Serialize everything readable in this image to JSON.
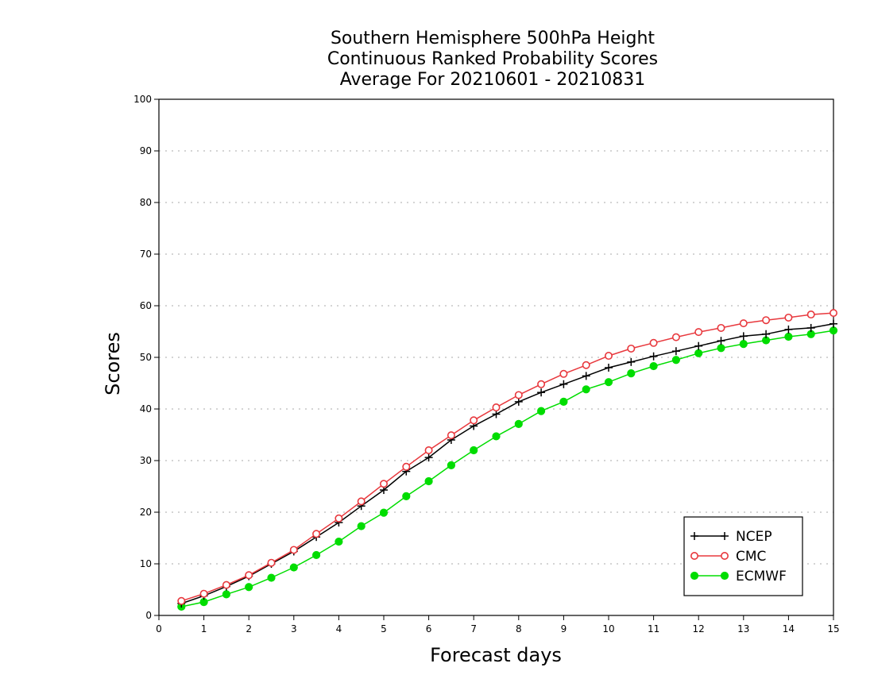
{
  "title_lines": [
    "Southern Hemisphere 500hPa Height",
    "Continuous Ranked Probability Scores",
    "Average For 20210601 - 20210831"
  ],
  "chart_data": {
    "type": "line",
    "title": "Southern Hemisphere 500hPa Height Continuous Ranked Probability Scores Average For 20210601 - 20210831",
    "xlabel": "Forecast days",
    "ylabel": "Scores",
    "xlim": [
      0,
      15
    ],
    "ylim": [
      0,
      100
    ],
    "x_ticks": [
      "0",
      "1",
      "2",
      "3",
      "4",
      "5",
      "6",
      "7",
      "8",
      "9",
      "10",
      "11",
      "12",
      "13",
      "14",
      "15"
    ],
    "y_ticks": [
      "0",
      "10",
      "20",
      "30",
      "40",
      "50",
      "60",
      "70",
      "80",
      "90",
      "100"
    ],
    "grid": "horizontal dotted",
    "legend_position": "bottom-right",
    "x": [
      0.5,
      1,
      1.5,
      2,
      2.5,
      3,
      3.5,
      4,
      4.5,
      5,
      5.5,
      6,
      6.5,
      7,
      7.5,
      8,
      8.5,
      9,
      9.5,
      10,
      10.5,
      11,
      11.5,
      12,
      12.5,
      13,
      13.5,
      14,
      14.5,
      15
    ],
    "series": [
      {
        "name": "NCEP",
        "color": "#000000",
        "marker": "plus",
        "values": [
          2.3,
          3.8,
          5.6,
          7.6,
          10.0,
          12.4,
          15.2,
          18.0,
          21.2,
          24.3,
          27.9,
          30.6,
          34.0,
          36.7,
          39.0,
          41.4,
          43.2,
          44.8,
          46.4,
          48.0,
          49.1,
          50.2,
          51.2,
          52.2,
          53.2,
          54.1,
          54.5,
          55.4,
          55.7,
          56.5
        ]
      },
      {
        "name": "CMC",
        "color": "#e8383d",
        "marker": "open-circle",
        "values": [
          2.8,
          4.2,
          5.9,
          7.8,
          10.2,
          12.7,
          15.8,
          18.8,
          22.1,
          25.5,
          28.8,
          32.0,
          34.9,
          37.8,
          40.3,
          42.7,
          44.8,
          46.8,
          48.5,
          50.3,
          51.7,
          52.8,
          53.9,
          54.9,
          55.7,
          56.6,
          57.2,
          57.7,
          58.3,
          58.6
        ]
      },
      {
        "name": "ECMWF",
        "color": "#00dd00",
        "marker": "filled-circle",
        "values": [
          1.7,
          2.6,
          4.1,
          5.5,
          7.3,
          9.3,
          11.7,
          14.3,
          17.3,
          19.9,
          23.1,
          26.0,
          29.1,
          32.0,
          34.7,
          37.1,
          39.6,
          41.4,
          43.8,
          45.2,
          46.9,
          48.3,
          49.5,
          50.8,
          51.8,
          52.6,
          53.3,
          54.0,
          54.5,
          55.2
        ]
      }
    ]
  }
}
